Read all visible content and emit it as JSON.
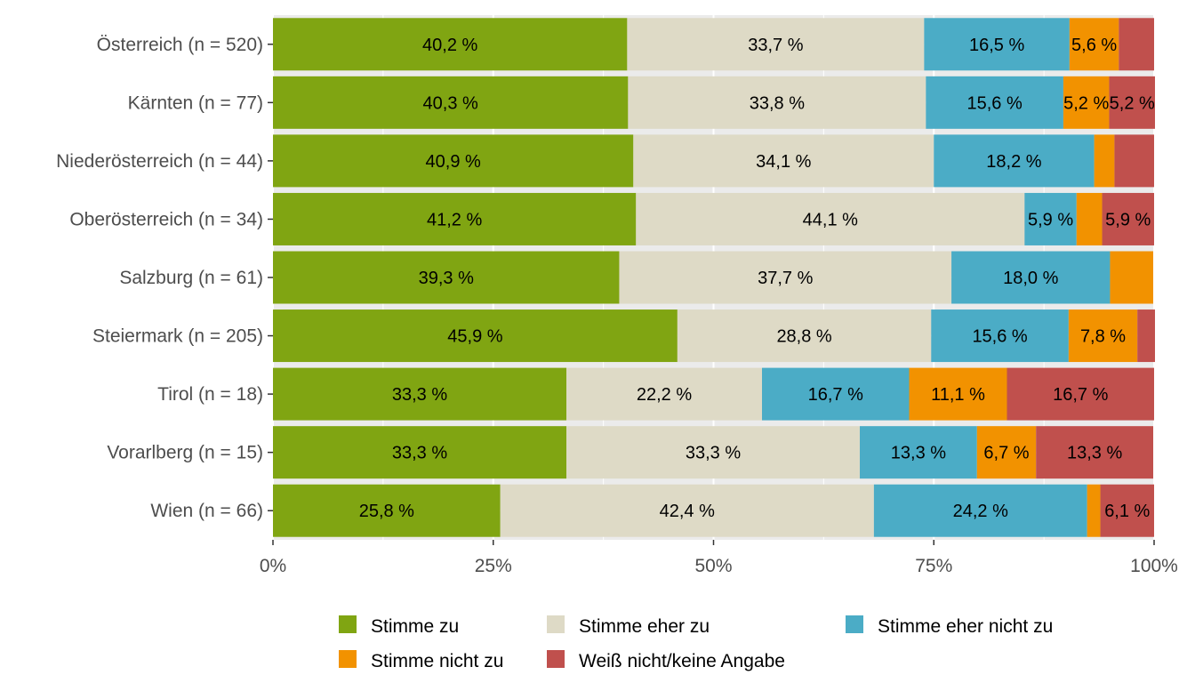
{
  "chart_data": {
    "type": "bar",
    "orientation": "horizontal",
    "stacked": "percent",
    "categories": [
      "Österreich (n = 520)",
      "Kärnten (n = 77)",
      "Niederösterreich (n = 44)",
      "Oberösterreich (n = 34)",
      "Salzburg (n = 61)",
      "Steiermark (n = 205)",
      "Tirol (n = 18)",
      "Vorarlberg (n = 15)",
      "Wien (n = 66)"
    ],
    "series": [
      {
        "name": "Stimme zu",
        "color": "#80a512",
        "values": [
          40.2,
          40.3,
          40.9,
          41.2,
          39.3,
          45.9,
          33.3,
          33.3,
          25.8
        ],
        "labels": [
          "40,2 %",
          "40,3 %",
          "40,9 %",
          "41,2 %",
          "39,3 %",
          "45,9 %",
          "33,3 %",
          "33,3 %",
          "25,8 %"
        ]
      },
      {
        "name": "Stimme eher zu",
        "color": "#dedac6",
        "values": [
          33.7,
          33.8,
          34.1,
          44.1,
          37.7,
          28.8,
          22.2,
          33.3,
          42.4
        ],
        "labels": [
          "33,7 %",
          "33,8 %",
          "34,1 %",
          "44,1 %",
          "37,7 %",
          "28,8 %",
          "22,2 %",
          "33,3 %",
          "42,4 %"
        ]
      },
      {
        "name": "Stimme eher nicht zu",
        "color": "#4bacc6",
        "values": [
          16.5,
          15.6,
          18.2,
          5.9,
          18.0,
          15.6,
          16.7,
          13.3,
          24.2
        ],
        "labels": [
          "16,5 %",
          "15,6 %",
          "18,2 %",
          "5,9 %",
          "18,0 %",
          "15,6 %",
          "16,7 %",
          "13,3 %",
          "24,2 %"
        ]
      },
      {
        "name": "Stimme nicht zu",
        "color": "#f29200",
        "values": [
          5.6,
          5.2,
          2.3,
          2.9,
          4.9,
          7.8,
          11.1,
          6.7,
          1.5
        ],
        "labels": [
          "5,6 %",
          "5,2 %",
          "",
          "",
          "",
          "7,8 %",
          "11,1 %",
          "6,7 %",
          ""
        ]
      },
      {
        "name": "Weiß nicht/keine Angabe",
        "color": "#c0504d",
        "values": [
          4.0,
          5.2,
          4.5,
          5.9,
          0.0,
          2.0,
          16.7,
          13.3,
          6.1
        ],
        "labels": [
          "",
          "5,2 %",
          "",
          "5,9 %",
          "",
          "",
          "16,7 %",
          "13,3 %",
          "6,1 %"
        ]
      }
    ],
    "xlim": [
      0,
      100
    ],
    "x_ticks": [
      0,
      25,
      50,
      75,
      100
    ],
    "x_tick_labels": [
      "0%",
      "25%",
      "50%",
      "75%",
      "100%"
    ],
    "title": "",
    "xlabel": "",
    "ylabel": "",
    "grid": true,
    "legend_position": "bottom",
    "panel_background": "#ebebeb"
  }
}
